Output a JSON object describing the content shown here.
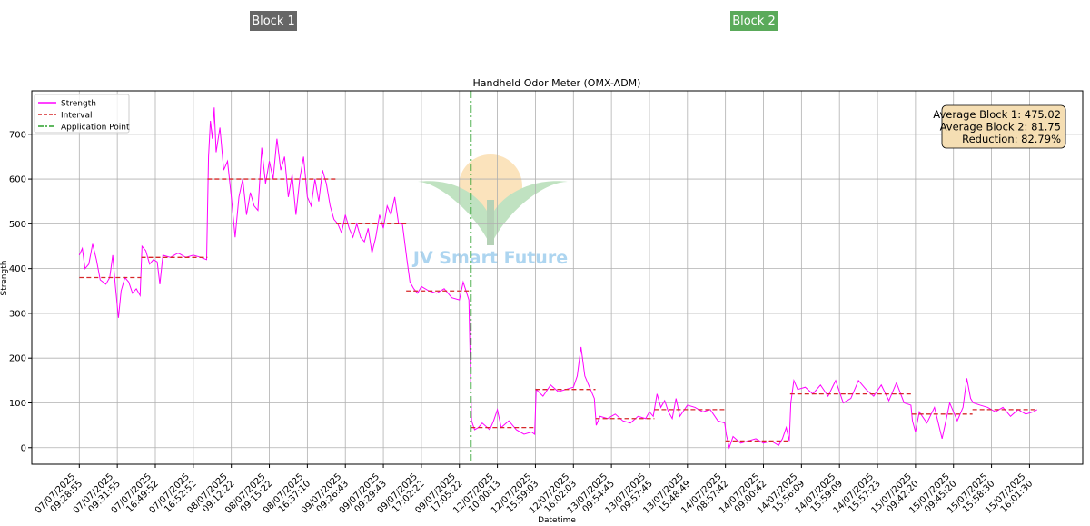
{
  "chart_data": {
    "type": "line",
    "title": "Handheld Odor Meter (OMX-ADM)",
    "xlabel": "Datetime",
    "ylabel": "Strength",
    "blocks": [
      {
        "label": "Block 1",
        "color": "#666666"
      },
      {
        "label": "Block 2",
        "color": "#5aaa5a"
      }
    ],
    "watermark": "JV Smart Future",
    "info_box": [
      "Average Block 1: 475.02",
      "Average Block 2: 81.75",
      "Reduction: 82.79%"
    ],
    "xlim": [
      -1.25,
      26.4
    ],
    "xticks": [
      {
        "value": 0,
        "label": [
          "07/07/2025",
          "09:28:55"
        ]
      },
      {
        "value": 1,
        "label": [
          "07/07/2025",
          "09:31:55"
        ]
      },
      {
        "value": 2,
        "label": [
          "07/07/2025",
          "16:49:52"
        ]
      },
      {
        "value": 3,
        "label": [
          "07/07/2025",
          "16:52:52"
        ]
      },
      {
        "value": 4,
        "label": [
          "08/07/2025",
          "09:12:22"
        ]
      },
      {
        "value": 5,
        "label": [
          "08/07/2025",
          "09:15:22"
        ]
      },
      {
        "value": 6,
        "label": [
          "08/07/2025",
          "16:37:10"
        ]
      },
      {
        "value": 7,
        "label": [
          "09/07/2025",
          "09:26:43"
        ]
      },
      {
        "value": 8,
        "label": [
          "09/07/2025",
          "09:29:43"
        ]
      },
      {
        "value": 9,
        "label": [
          "09/07/2025",
          "17:02:22"
        ]
      },
      {
        "value": 10,
        "label": [
          "09/07/2025",
          "17:05:22"
        ]
      },
      {
        "value": 11,
        "label": [
          "12/07/2025",
          "10:00:13"
        ]
      },
      {
        "value": 12,
        "label": [
          "12/07/2025",
          "15:59:03"
        ]
      },
      {
        "value": 13,
        "label": [
          "12/07/2025",
          "16:02:03"
        ]
      },
      {
        "value": 14,
        "label": [
          "13/07/2025",
          "09:54:45"
        ]
      },
      {
        "value": 15,
        "label": [
          "13/07/2025",
          "09:57:45"
        ]
      },
      {
        "value": 16,
        "label": [
          "13/07/2025",
          "15:48:49"
        ]
      },
      {
        "value": 17,
        "label": [
          "14/07/2025",
          "08:57:42"
        ]
      },
      {
        "value": 18,
        "label": [
          "14/07/2025",
          "09:00:42"
        ]
      },
      {
        "value": 19,
        "label": [
          "14/07/2025",
          "15:56:09"
        ]
      },
      {
        "value": 20,
        "label": [
          "14/07/2025",
          "15:59:09"
        ]
      },
      {
        "value": 21,
        "label": [
          "14/07/2025",
          "15:57:23"
        ]
      },
      {
        "value": 22,
        "label": [
          "15/07/2025",
          "09:42:20"
        ]
      },
      {
        "value": 23,
        "label": [
          "15/07/2025",
          "09:45:20"
        ]
      },
      {
        "value": 24,
        "label": [
          "15/07/2025",
          "15:58:30"
        ]
      },
      {
        "value": 25,
        "label": [
          "15/07/2025",
          "16:01:30"
        ]
      }
    ],
    "ylim": [
      -37,
      797
    ],
    "yticks": [
      0,
      100,
      200,
      300,
      400,
      500,
      600,
      700
    ],
    "grid": true,
    "legend": "upper left",
    "series": [
      {
        "name": "Strength",
        "color": "#ff00ff",
        "x": [
          0,
          0.08,
          0.15,
          0.25,
          0.35,
          0.45,
          0.55,
          0.7,
          0.8,
          0.88,
          0.95,
          1.03,
          1.1,
          1.2,
          1.3,
          1.4,
          1.5,
          1.6,
          1.65,
          1.75,
          1.85,
          1.95,
          2.05,
          2.12,
          2.2,
          2.4,
          2.6,
          2.8,
          3.0,
          3.2,
          3.35,
          3.4,
          3.45,
          3.5,
          3.55,
          3.6,
          3.7,
          3.8,
          3.9,
          4.0,
          4.1,
          4.2,
          4.3,
          4.4,
          4.5,
          4.6,
          4.7,
          4.8,
          4.9,
          5.0,
          5.1,
          5.2,
          5.3,
          5.4,
          5.5,
          5.6,
          5.7,
          5.8,
          5.9,
          6.0,
          6.1,
          6.2,
          6.3,
          6.4,
          6.5,
          6.6,
          6.7,
          6.8,
          6.9,
          7.0,
          7.1,
          7.2,
          7.3,
          7.4,
          7.5,
          7.6,
          7.7,
          7.8,
          7.9,
          8.0,
          8.1,
          8.2,
          8.3,
          8.4,
          8.5,
          8.62,
          8.7,
          8.8,
          8.9,
          9.0,
          9.2,
          9.4,
          9.6,
          9.8,
          10.0,
          10.1,
          10.25,
          10.32,
          10.4,
          10.5,
          10.6,
          10.8,
          10.9,
          11.0,
          11.1,
          11.3,
          11.5,
          11.7,
          11.9,
          11.98,
          12.02,
          12.2,
          12.4,
          12.6,
          12.8,
          13.0,
          13.1,
          13.2,
          13.3,
          13.4,
          13.55,
          13.6,
          13.7,
          13.9,
          14.1,
          14.3,
          14.5,
          14.7,
          14.9,
          15.0,
          15.1,
          15.2,
          15.3,
          15.4,
          15.5,
          15.6,
          15.7,
          15.8,
          16.0,
          16.2,
          16.4,
          16.6,
          16.8,
          16.98,
          17.02,
          17.1,
          17.2,
          17.4,
          17.6,
          17.8,
          18.0,
          18.2,
          18.4,
          18.5,
          18.6,
          18.68,
          18.72,
          18.8,
          18.9,
          19.1,
          19.3,
          19.5,
          19.7,
          19.9,
          20.1,
          20.3,
          20.5,
          20.7,
          20.9,
          21.1,
          21.3,
          21.5,
          21.7,
          21.88,
          21.92,
          22.0,
          22.1,
          22.3,
          22.5,
          22.7,
          22.9,
          23.1,
          23.25,
          23.35,
          23.45,
          23.52,
          23.7,
          23.9,
          24.1,
          24.3,
          24.5,
          24.7,
          24.9,
          25.1,
          25.2
        ],
        "values": [
          430,
          445,
          400,
          410,
          455,
          420,
          375,
          365,
          380,
          430,
          360,
          290,
          350,
          380,
          370,
          345,
          355,
          340,
          450,
          440,
          410,
          420,
          415,
          365,
          430,
          425,
          435,
          425,
          430,
          425,
          420,
          650,
          730,
          690,
          760,
          660,
          715,
          620,
          640,
          560,
          470,
          560,
          600,
          520,
          570,
          540,
          530,
          670,
          590,
          640,
          600,
          690,
          620,
          650,
          560,
          610,
          520,
          600,
          650,
          560,
          540,
          600,
          550,
          620,
          590,
          540,
          510,
          500,
          480,
          520,
          490,
          470,
          500,
          470,
          460,
          490,
          435,
          470,
          520,
          490,
          540,
          520,
          560,
          500,
          500,
          420,
          370,
          355,
          345,
          360,
          350,
          345,
          355,
          335,
          330,
          370,
          330,
          60,
          40,
          45,
          55,
          40,
          60,
          85,
          45,
          60,
          40,
          30,
          35,
          30,
          130,
          115,
          140,
          125,
          130,
          135,
          160,
          225,
          160,
          140,
          110,
          50,
          70,
          65,
          75,
          60,
          55,
          70,
          65,
          80,
          70,
          120,
          90,
          105,
          80,
          65,
          110,
          70,
          95,
          90,
          80,
          85,
          60,
          55,
          30,
          0,
          25,
          10,
          15,
          20,
          10,
          15,
          5,
          20,
          45,
          15,
          100,
          150,
          130,
          135,
          120,
          140,
          115,
          150,
          100,
          110,
          150,
          130,
          115,
          140,
          105,
          145,
          100,
          95,
          60,
          35,
          80,
          55,
          90,
          20,
          100,
          60,
          90,
          155,
          110,
          100,
          95,
          90,
          80,
          90,
          70,
          85,
          75,
          80,
          85
        ]
      }
    ],
    "interval": {
      "name": "Interval",
      "color": "#d62728",
      "segments": [
        {
          "x": [
            0,
            1.63
          ],
          "value": 380
        },
        {
          "x": [
            1.63,
            3.37
          ],
          "value": 425
        },
        {
          "x": [
            3.37,
            6.76
          ],
          "value": 600
        },
        {
          "x": [
            6.76,
            8.6
          ],
          "value": 500
        },
        {
          "x": [
            8.6,
            10.3
          ],
          "value": 350
        },
        {
          "x": [
            10.3,
            12.0
          ],
          "value": 45
        },
        {
          "x": [
            12.0,
            13.58
          ],
          "value": 130
        },
        {
          "x": [
            13.58,
            15.13
          ],
          "value": 65
        },
        {
          "x": [
            15.13,
            17.0
          ],
          "value": 85
        },
        {
          "x": [
            17.0,
            18.7
          ],
          "value": 15
        },
        {
          "x": [
            18.7,
            21.9
          ],
          "value": 120
        },
        {
          "x": [
            21.9,
            23.5
          ],
          "value": 75
        },
        {
          "x": [
            23.5,
            25.2
          ],
          "value": 85
        }
      ]
    },
    "application_point": {
      "name": "Application Point",
      "x": 10.3,
      "color": "#2ca02c"
    }
  }
}
